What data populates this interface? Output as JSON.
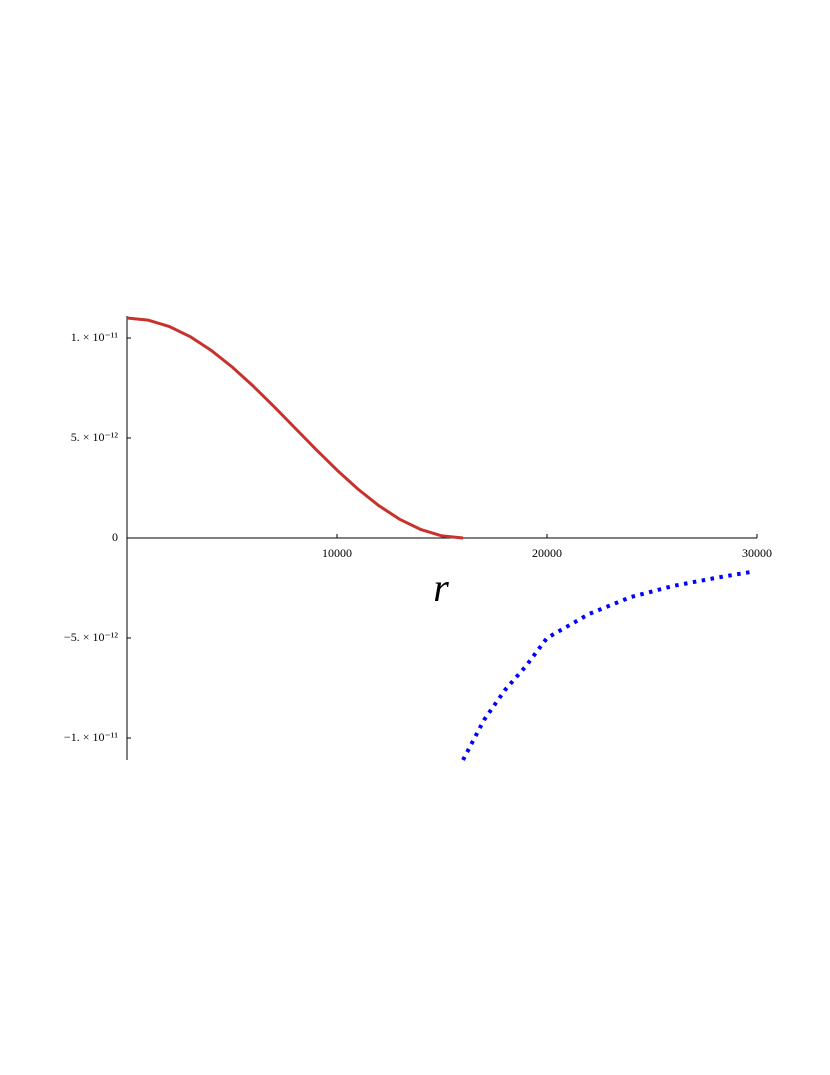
{
  "chart_data": {
    "type": "line",
    "x_label": "r",
    "xlim": [
      0,
      30000
    ],
    "ylim": [
      -1.11e-11,
      1.11e-11
    ],
    "xticks": [
      10000,
      20000,
      30000
    ],
    "yticks": [
      {
        "value": 1e-11,
        "label": "1. × 10⁻¹¹"
      },
      {
        "value": 5e-12,
        "label": "5. × 10⁻¹²"
      },
      0,
      {
        "value": -5e-12,
        "label": "−5. × 10⁻¹²"
      },
      {
        "value": -1e-11,
        "label": "−1. × 10⁻¹¹"
      }
    ],
    "series": [
      {
        "color": "#c8322d",
        "line_style": "solid",
        "x": [
          0,
          1000,
          2000,
          3000,
          4000,
          5000,
          6000,
          7000,
          8000,
          9000,
          10000,
          11000,
          12000,
          13000,
          14000,
          15000,
          16000
        ],
        "values": [
          1.1e-11,
          1.0894e-11,
          1.0581e-11,
          1.0073e-11,
          9.389e-12,
          8.556e-12,
          7.605e-12,
          6.573e-12,
          5.5e-12,
          4.427e-12,
          3.395e-12,
          2.444e-12,
          1.611e-12,
          9.27e-13,
          4.19e-13,
          1.06e-13,
          0
        ]
      },
      {
        "color": "#0000ff",
        "line_style": "dotted",
        "x": [
          16000,
          17000,
          18000,
          19000,
          20000,
          22000,
          24000,
          26000,
          28000,
          29700
        ],
        "values": [
          -1.11e-11,
          -9.1e-12,
          -7.6e-12,
          -6.4e-12,
          -5e-12,
          -3.8e-12,
          -2.95e-12,
          -2.4e-12,
          -2e-12,
          -1.7e-12
        ]
      }
    ]
  }
}
